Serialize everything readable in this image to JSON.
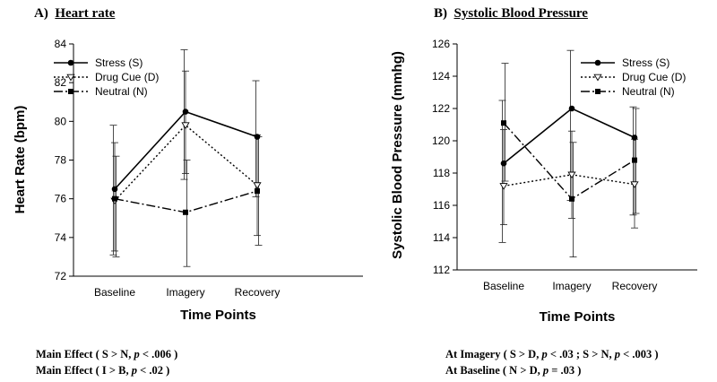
{
  "chart_data": [
    {
      "type": "line",
      "panel_letter": "A)",
      "title": "Heart rate",
      "xlabel": "Time Points",
      "ylabel": "Heart Rate (bpm)",
      "categories": [
        "Baseline",
        "Imagery",
        "Recovery"
      ],
      "ylim": [
        72,
        84
      ],
      "yticks": [
        72,
        74,
        76,
        78,
        80,
        82,
        84
      ],
      "legend_position": "top-left",
      "series": [
        {
          "name": "Stress (S)",
          "style": "solid",
          "marker": "circle",
          "values": [
            76.5,
            80.5,
            79.2
          ],
          "err_low": [
            73.1,
            77.0,
            76.1
          ],
          "err_high": [
            79.8,
            83.7,
            82.1
          ]
        },
        {
          "name": "Drug Cue (D)",
          "style": "dotted",
          "marker": "triangle-down",
          "values": [
            75.9,
            79.8,
            76.7
          ],
          "err_low": [
            73.3,
            77.3,
            74.1
          ],
          "err_high": [
            78.9,
            82.6,
            79.3
          ]
        },
        {
          "name": "Neutral (N)",
          "style": "dashdot",
          "marker": "square",
          "values": [
            76.0,
            75.3,
            76.4
          ],
          "err_low": [
            73.0,
            72.5,
            73.6
          ],
          "err_high": [
            78.2,
            78.0,
            79.2
          ]
        }
      ],
      "notes": [
        {
          "text": "Main Effect ( S > N, ",
          "p": "p",
          "rest": " < .006 )"
        },
        {
          "text": "Main Effect ( I > B, ",
          "p": "p",
          "rest": " < .02 )"
        }
      ]
    },
    {
      "type": "line",
      "panel_letter": "B)",
      "title": "Systolic Blood Pressure",
      "xlabel": "Time Points",
      "ylabel": "Systolic Blood Pressure (mmhg)",
      "categories": [
        "Baseline",
        "Imagery",
        "Recovery"
      ],
      "ylim": [
        112,
        126
      ],
      "yticks": [
        112,
        114,
        116,
        118,
        120,
        122,
        124,
        126
      ],
      "legend_position": "top-right",
      "series": [
        {
          "name": "Stress (S)",
          "style": "solid",
          "marker": "circle",
          "values": [
            118.6,
            122.0,
            120.2
          ],
          "err_low": [
            113.7,
            116.3,
            115.4
          ],
          "err_high": [
            122.5,
            125.6,
            122.1
          ]
        },
        {
          "name": "Drug Cue (D)",
          "style": "dotted",
          "marker": "triangle-down",
          "values": [
            117.2,
            117.9,
            117.3
          ],
          "err_low": [
            114.8,
            115.2,
            114.6
          ],
          "err_high": [
            120.7,
            120.6,
            120.1
          ]
        },
        {
          "name": "Neutral (N)",
          "style": "dashdot",
          "marker": "square",
          "values": [
            121.1,
            116.4,
            118.8
          ],
          "err_low": [
            117.5,
            112.8,
            115.5
          ],
          "err_high": [
            124.8,
            119.9,
            122.0
          ]
        }
      ],
      "notes": [
        {
          "text": "At Imagery ( S > D, ",
          "p": "p",
          "rest": " < .03 ;   S > N, ",
          "p2": "p",
          "rest2": " < .003 )"
        },
        {
          "text": "At Baseline ( N > D, ",
          "p": "p",
          "rest": " = .03 )"
        }
      ]
    }
  ]
}
